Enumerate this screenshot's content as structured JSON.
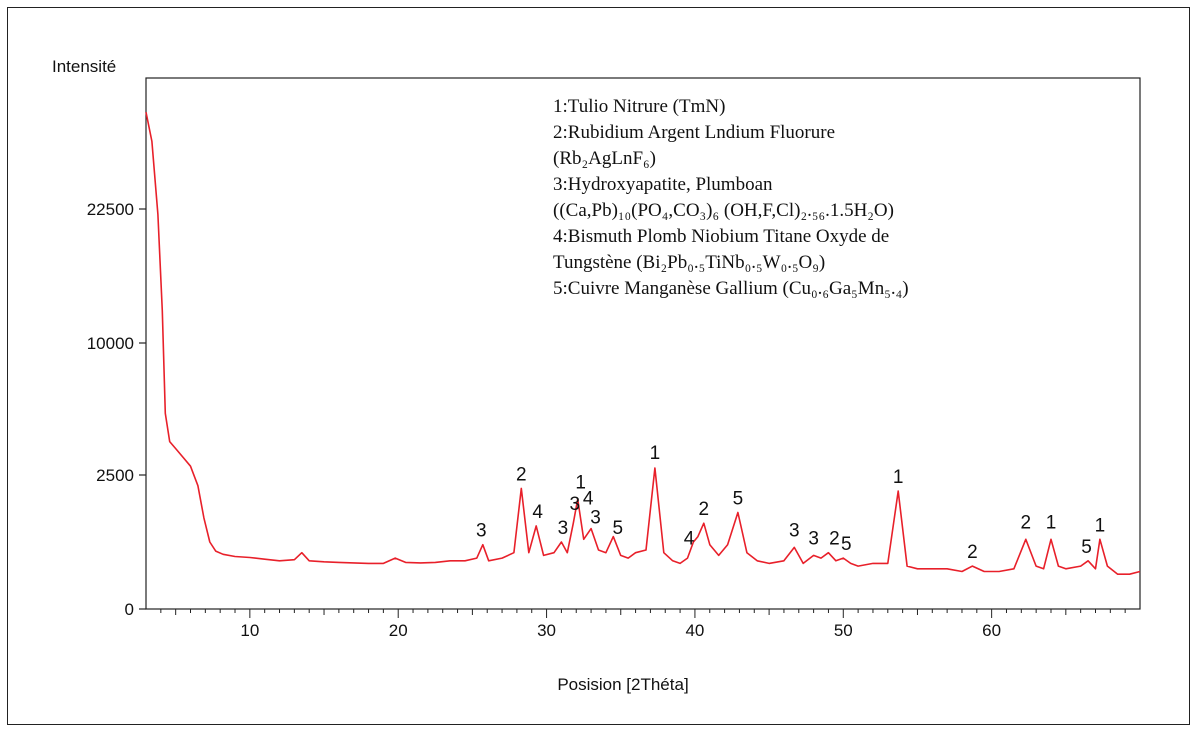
{
  "chart_data": {
    "type": "line",
    "ylabel": "Intensité",
    "xlabel": "Posision [2Théta]",
    "xlim": [
      3,
      70
    ],
    "ylim": [
      0,
      28000
    ],
    "x_ticks": [
      10,
      20,
      30,
      40,
      50,
      60
    ],
    "x_tick_labels": [
      "10",
      "20",
      "30",
      "40",
      "50",
      "60"
    ],
    "y_ticks": [
      0,
      2500,
      10000,
      22500
    ],
    "y_tick_labels": [
      "0",
      "2500",
      "10000",
      "22500"
    ],
    "line_color": "#e8202a",
    "grid": false,
    "legend_position": "top-right",
    "legend_lines": [
      "1:Tulio Nitrure (TmN)",
      "2:Rubidium Argent Lndium Fluorure",
      "(Rb₂AgLnF₆)",
      "3:Hydroxyapatite, Plumboan",
      "((Ca,Pb)₁₀(PO₄,CO₃)₆ (OH,F,Cl)₂.₅₆.1.5H₂O)",
      "4:Bismuth Plomb Niobium Titane Oxyde de",
      "Tungstène (Bi₂Pb₀.₅TiNb₀.₅W₀.₅O₉)",
      "5:Cuivre Manganèse Gallium (Cu₀.₆Ga₅Mn₅.₄)"
    ],
    "series": [
      {
        "x": [
          3.0,
          3.4,
          3.8,
          4.1,
          4.3,
          4.6,
          5.0,
          5.5,
          6.0,
          6.5,
          6.9,
          7.3,
          7.7,
          8.2,
          9.0,
          10.0,
          11.0,
          12.0,
          13.0,
          13.5,
          14.0,
          15.0,
          16.0,
          17.0,
          18.0,
          19.0,
          19.8,
          20.5,
          21.5,
          22.5,
          23.5,
          24.5,
          25.3,
          25.7,
          26.1,
          27.0,
          27.8,
          28.3,
          28.8,
          29.3,
          29.8,
          30.5,
          31.0,
          31.4,
          31.8,
          32.1,
          32.5,
          33.0,
          33.5,
          34.0,
          34.5,
          35.0,
          35.5,
          36.0,
          36.7,
          37.3,
          37.9,
          38.5,
          39.0,
          39.5,
          39.9,
          40.2,
          40.6,
          41.0,
          41.6,
          42.2,
          42.9,
          43.5,
          44.2,
          45.0,
          46.0,
          46.7,
          47.3,
          48.0,
          48.5,
          49.0,
          49.5,
          50.0,
          50.5,
          51.0,
          52.0,
          53.0,
          53.7,
          54.3,
          55.0,
          56.0,
          57.0,
          58.0,
          58.7,
          59.5,
          60.5,
          61.5,
          62.3,
          63.0,
          63.5,
          64.0,
          64.5,
          65.0,
          66.0,
          66.5,
          67.0,
          67.3,
          67.8,
          68.5,
          69.3,
          70.0
        ],
        "y": [
          26800,
          25500,
          22000,
          13000,
          6000,
          4400,
          4000,
          3500,
          3000,
          2300,
          1700,
          1250,
          1080,
          1020,
          980,
          960,
          930,
          900,
          920,
          1050,
          900,
          880,
          870,
          860,
          850,
          850,
          950,
          870,
          860,
          870,
          900,
          900,
          950,
          1200,
          900,
          950,
          1050,
          2250,
          1050,
          1550,
          1000,
          1050,
          1250,
          1050,
          1600,
          2050,
          1300,
          1500,
          1100,
          1050,
          1350,
          1000,
          950,
          1050,
          1100,
          2900,
          1050,
          900,
          850,
          950,
          1250,
          1350,
          1600,
          1200,
          1000,
          1200,
          1800,
          1050,
          900,
          850,
          900,
          1150,
          850,
          1000,
          950,
          1050,
          900,
          950,
          850,
          800,
          850,
          850,
          2200,
          800,
          750,
          750,
          750,
          700,
          800,
          700,
          700,
          750,
          1300,
          800,
          750,
          1300,
          800,
          750,
          800,
          900,
          750,
          1300,
          800,
          650,
          650,
          700
        ]
      }
    ],
    "peak_labels": [
      {
        "x": 25.6,
        "y": 1200,
        "label": "3"
      },
      {
        "x": 28.3,
        "y": 2250,
        "label": "2"
      },
      {
        "x": 29.4,
        "y": 1550,
        "label": "4"
      },
      {
        "x": 31.1,
        "y": 1250,
        "label": "3"
      },
      {
        "x": 31.9,
        "y": 1700,
        "label": "3"
      },
      {
        "x": 32.3,
        "y": 2100,
        "label": "1"
      },
      {
        "x": 32.8,
        "y": 1800,
        "label": "4"
      },
      {
        "x": 33.3,
        "y": 1450,
        "label": "3"
      },
      {
        "x": 34.8,
        "y": 1250,
        "label": "5"
      },
      {
        "x": 37.3,
        "y": 2950,
        "label": "1"
      },
      {
        "x": 39.6,
        "y": 1050,
        "label": "4"
      },
      {
        "x": 40.6,
        "y": 1600,
        "label": "2"
      },
      {
        "x": 42.9,
        "y": 1800,
        "label": "5"
      },
      {
        "x": 46.7,
        "y": 1200,
        "label": "3"
      },
      {
        "x": 48.0,
        "y": 1050,
        "label": "3"
      },
      {
        "x": 49.4,
        "y": 1050,
        "label": "2"
      },
      {
        "x": 50.2,
        "y": 950,
        "label": "5"
      },
      {
        "x": 53.7,
        "y": 2200,
        "label": "1"
      },
      {
        "x": 58.7,
        "y": 800,
        "label": "2"
      },
      {
        "x": 62.3,
        "y": 1350,
        "label": "2"
      },
      {
        "x": 64.0,
        "y": 1350,
        "label": "1"
      },
      {
        "x": 66.4,
        "y": 900,
        "label": "5"
      },
      {
        "x": 67.3,
        "y": 1300,
        "label": "1"
      }
    ]
  }
}
